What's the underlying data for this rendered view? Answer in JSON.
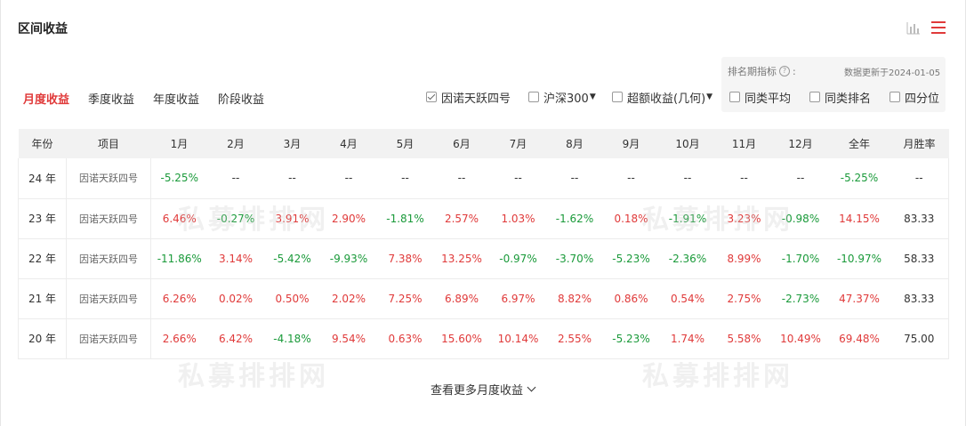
{
  "title": "区间收益",
  "icons": {
    "chart": "bar-chart-icon",
    "list": "list-icon",
    "accent": "#e03a3a"
  },
  "tabs": [
    "月度收益",
    "季度收益",
    "年度收益",
    "阶段收益"
  ],
  "active_tab": 0,
  "checkboxes": {
    "fund": {
      "label": "因诺天跃四号",
      "checked": true
    },
    "hs300": {
      "label": "沪深300",
      "checked": false
    },
    "excess": {
      "label": "超额收益(几何)",
      "checked": false
    },
    "peer_avg": {
      "label": "同类平均",
      "checked": false
    },
    "peer_rank": {
      "label": "同类排名",
      "checked": false
    },
    "quartile": {
      "label": "四分位",
      "checked": false
    }
  },
  "rank_indicator_label": "排名期指标",
  "rank_colon": ":",
  "update_text": "数据更新于2024-01-05",
  "headers": [
    "年份",
    "项目",
    "1月",
    "2月",
    "3月",
    "4月",
    "5月",
    "6月",
    "7月",
    "8月",
    "9月",
    "10月",
    "11月",
    "12月",
    "全年",
    "月胜率"
  ],
  "rows": [
    {
      "year": "24 年",
      "item": "因诺天跃四号",
      "cells": [
        "-5.25%",
        "--",
        "--",
        "--",
        "--",
        "--",
        "--",
        "--",
        "--",
        "--",
        "--",
        "--",
        "-5.25%",
        "--"
      ]
    },
    {
      "year": "23 年",
      "item": "因诺天跃四号",
      "cells": [
        "6.46%",
        "-0.27%",
        "3.91%",
        "2.90%",
        "-1.81%",
        "2.57%",
        "1.03%",
        "-1.62%",
        "0.18%",
        "-1.91%",
        "3.23%",
        "-0.98%",
        "14.15%",
        "83.33"
      ]
    },
    {
      "year": "22 年",
      "item": "因诺天跃四号",
      "cells": [
        "-11.86%",
        "3.14%",
        "-5.42%",
        "-9.93%",
        "7.38%",
        "13.25%",
        "-0.97%",
        "-3.70%",
        "-5.23%",
        "-2.36%",
        "8.99%",
        "-1.70%",
        "-10.97%",
        "58.33"
      ]
    },
    {
      "year": "21 年",
      "item": "因诺天跃四号",
      "cells": [
        "6.26%",
        "0.02%",
        "0.50%",
        "2.02%",
        "7.25%",
        "6.89%",
        "6.97%",
        "8.82%",
        "0.86%",
        "0.54%",
        "2.75%",
        "-2.73%",
        "47.37%",
        "83.33"
      ]
    },
    {
      "year": "20 年",
      "item": "因诺天跃四号",
      "cells": [
        "2.66%",
        "6.42%",
        "-4.18%",
        "9.54%",
        "0.63%",
        "15.60%",
        "10.14%",
        "2.55%",
        "-5.23%",
        "1.74%",
        "5.58%",
        "10.49%",
        "69.48%",
        "75.00"
      ]
    }
  ],
  "watermark": "私募排排网",
  "more_link": "查看更多月度收益"
}
